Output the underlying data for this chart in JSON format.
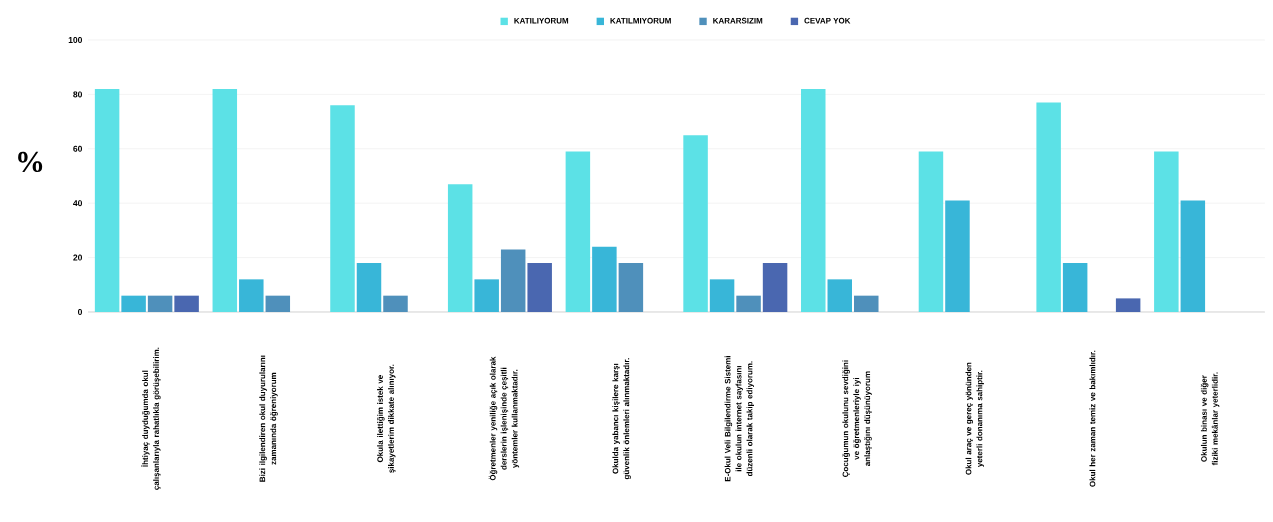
{
  "chart_data": {
    "type": "bar",
    "ylabel": "%",
    "categories": [
      "İhtiyaç duyduğumda okul çalışanlarıyla rahatlıkla görüşebilirim.",
      "Bizi ilgilendiren okul duyurularını zamanında öğreniyorum",
      "Okula ilettiğim istek ve şikayetlerim dikkate alınıyor.",
      "Öğretmenler yeniliğe açık olarak derslerin işlenişinde çeşitli yöntemler kullanmaktadır.",
      "Okulda yabancı kişilere karşı güvenlik önlemleri alınmaktadır.",
      "E-Okul Veli Bilgilendirme Sistemi ile okulun internet sayfasını düzenli olarak takip ediyorum.",
      "Çocuğumun okulunu sevdiğini ve öğretmenleriyle iyi anlaştığını düşünüyorum",
      "Okul araç ve gereç yönünden yeterli donanıma sahiptir.",
      "Okul her zaman temiz ve bakımlıdır.",
      "Okulun binası ve diğer fiziki mekânlar yeterlidir."
    ],
    "series": [
      {
        "name": "KATILIYORUM",
        "color": "#5ce1e6",
        "values": [
          82,
          82,
          76,
          47,
          59,
          65,
          82,
          59,
          77,
          59
        ]
      },
      {
        "name": "KATILMIYORUM",
        "color": "#38b6d8",
        "values": [
          6,
          12,
          18,
          12,
          24,
          12,
          12,
          41,
          18,
          41
        ]
      },
      {
        "name": "KARARSIZIM",
        "color": "#4f90bb",
        "values": [
          6,
          6,
          6,
          23,
          18,
          6,
          6,
          null,
          null,
          null
        ]
      },
      {
        "name": "CEVAP YOK",
        "color": "#4a67b0",
        "values": [
          6,
          null,
          null,
          18,
          null,
          18,
          null,
          null,
          5,
          null
        ]
      }
    ],
    "ylim": [
      0,
      100
    ],
    "yticks": [
      0,
      20,
      40,
      60,
      80,
      100
    ],
    "grid": "y",
    "legend": "top"
  }
}
